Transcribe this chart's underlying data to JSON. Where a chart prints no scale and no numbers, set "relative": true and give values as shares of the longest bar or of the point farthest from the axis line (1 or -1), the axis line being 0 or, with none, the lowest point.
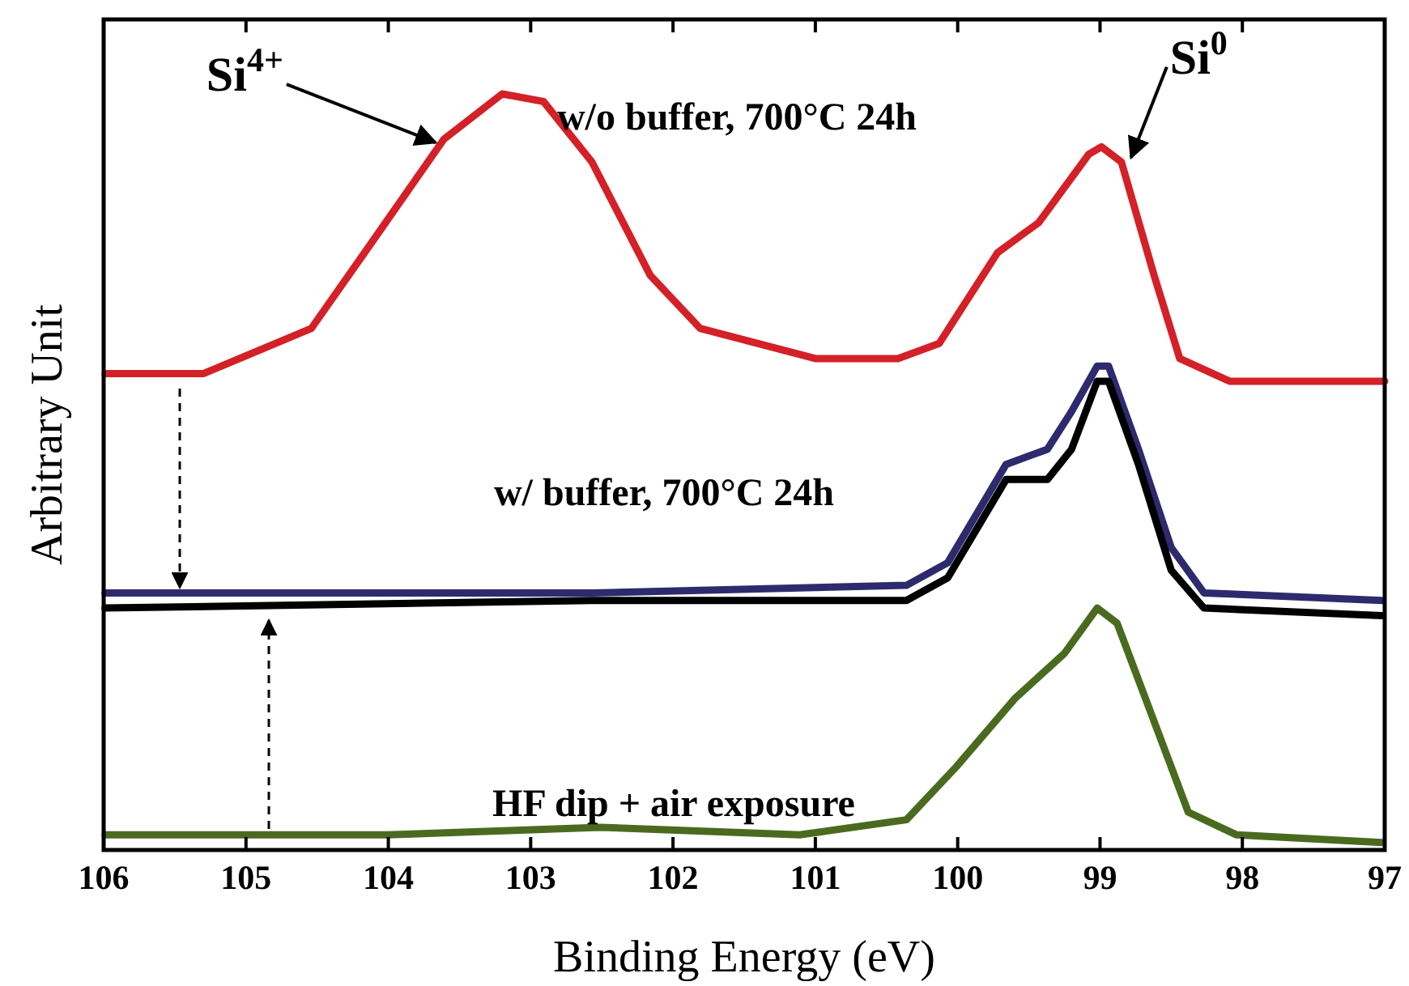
{
  "chart_data": {
    "type": "line",
    "relative": true,
    "xlabel": "Binding Energy (eV)",
    "ylabel": "Arbitrary Unit",
    "xlim": [
      106,
      97
    ],
    "xticks": [
      106,
      105,
      104,
      103,
      102,
      101,
      100,
      99,
      98,
      97
    ],
    "tick_labels": "x",
    "grid": false,
    "line_style": "solid",
    "series": [
      {
        "name": "w/o buffer, 700°C 24h",
        "color": "#d42027",
        "x": [
          105.99,
          105.3,
          104.54,
          104.13,
          103.61,
          103.2,
          102.91,
          102.57,
          102.16,
          101.81,
          101.0,
          100.42,
          100.13,
          99.72,
          99.43,
          99.08,
          98.99,
          98.85,
          98.62,
          98.44,
          98.09,
          97.11,
          97.0
        ],
        "values": [
          0.63,
          0.63,
          0.69,
          0.8,
          0.94,
          1.0,
          0.99,
          0.91,
          0.76,
          0.69,
          0.65,
          0.65,
          0.67,
          0.79,
          0.83,
          0.92,
          0.93,
          0.91,
          0.76,
          0.65,
          0.62,
          0.62,
          0.62
        ]
      },
      {
        "name": "w/ buffer, 700°C 24h",
        "color": "#2e2a6e",
        "x": [
          105.99,
          102.57,
          100.36,
          100.07,
          99.66,
          99.37,
          99.2,
          99.02,
          98.94,
          98.73,
          98.5,
          98.27,
          97.02
        ],
        "values": [
          0.34,
          0.34,
          0.35,
          0.38,
          0.51,
          0.53,
          0.58,
          0.64,
          0.64,
          0.53,
          0.4,
          0.34,
          0.33
        ]
      },
      {
        "color": "#000000",
        "x": [
          105.99,
          102.57,
          100.36,
          100.07,
          99.66,
          99.37,
          99.2,
          99.02,
          98.94,
          98.73,
          98.5,
          98.27,
          97.02
        ],
        "values": [
          0.32,
          0.33,
          0.33,
          0.36,
          0.49,
          0.49,
          0.53,
          0.62,
          0.62,
          0.51,
          0.37,
          0.32,
          0.31
        ]
      },
      {
        "name": "HF dip + air exposure",
        "color": "#4a6b1f",
        "x": [
          105.99,
          104.01,
          102.51,
          101.11,
          100.36,
          100.01,
          99.6,
          99.25,
          99.02,
          98.88,
          98.62,
          98.38,
          98.04,
          97.02
        ],
        "values": [
          0.02,
          0.02,
          0.03,
          0.02,
          0.04,
          0.11,
          0.2,
          0.26,
          0.32,
          0.3,
          0.17,
          0.05,
          0.02,
          0.01
        ]
      }
    ],
    "annotations": [
      {
        "text": "Si$^{4+}$",
        "x": 103.6,
        "y": 0.94
      },
      {
        "text": "Si$^{0}$",
        "x": 98.85,
        "y": 0.92
      }
    ]
  }
}
